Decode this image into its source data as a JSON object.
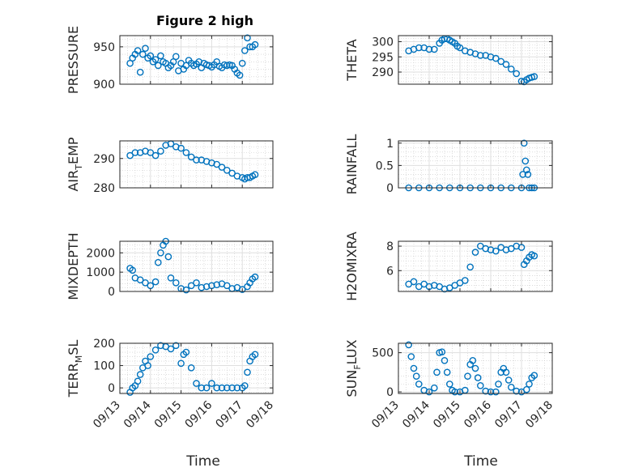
{
  "figure_title": "Figure 2 high",
  "xlabel": "Time",
  "xticks": [
    "09/13",
    "09/14",
    "09/15",
    "09/16",
    "09/17",
    "09/18"
  ],
  "colors": {
    "marker": "#0072BD",
    "axis": "#262626",
    "grid": "#DFDFDF",
    "minor_grid": "#C8C8C8"
  },
  "chart_data": [
    {
      "type": "scatter",
      "ylabel": {
        "text": "PRESSURE"
      },
      "xlim": [
        "09/13",
        "09/18"
      ],
      "ylim": [
        900,
        965
      ],
      "yticks": [
        900,
        950
      ],
      "x": [
        "09/13 08:00",
        "09/13 10:00",
        "09/13 12:00",
        "09/13 14:00",
        "09/13 16:00",
        "09/13 18:00",
        "09/13 20:00",
        "09/13 22:00",
        "09/14 00:00",
        "09/14 02:00",
        "09/14 04:00",
        "09/14 06:00",
        "09/14 08:00",
        "09/14 10:00",
        "09/14 12:00",
        "09/14 14:00",
        "09/14 16:00",
        "09/14 18:00",
        "09/14 20:00",
        "09/14 22:00",
        "09/15 00:00",
        "09/15 02:00",
        "09/15 04:00",
        "09/15 06:00",
        "09/15 08:00",
        "09/15 10:00",
        "09/15 12:00",
        "09/15 14:00",
        "09/15 16:00",
        "09/15 18:00",
        "09/15 20:00",
        "09/15 22:00",
        "09/16 00:00",
        "09/16 02:00",
        "09/16 04:00",
        "09/16 06:00",
        "09/16 08:00",
        "09/16 10:00",
        "09/16 12:00",
        "09/16 14:00",
        "09/16 16:00",
        "09/16 18:00",
        "09/16 20:00",
        "09/16 22:00",
        "09/17 00:00",
        "09/17 02:00",
        "09/17 04:00",
        "09/17 06:00",
        "09/17 08:00",
        "09/17 10:00"
      ],
      "y": [
        928,
        935,
        940,
        945,
        916,
        940,
        948,
        935,
        938,
        930,
        933,
        925,
        938,
        930,
        928,
        922,
        925,
        930,
        937,
        918,
        928,
        920,
        925,
        932,
        928,
        925,
        927,
        930,
        922,
        928,
        926,
        925,
        923,
        926,
        930,
        924,
        922,
        926,
        925,
        926,
        925,
        920,
        915,
        912,
        928,
        945,
        962,
        950,
        950,
        953
      ]
    },
    {
      "type": "scatter",
      "ylabel": {
        "text": "THETA"
      },
      "xlim": [
        "09/13",
        "09/18"
      ],
      "ylim": [
        286,
        302
      ],
      "yticks": [
        290,
        295,
        300
      ],
      "x": [
        "09/13 08:00",
        "09/13 12:00",
        "09/13 16:00",
        "09/13 20:00",
        "09/14 00:00",
        "09/14 04:00",
        "09/14 08:00",
        "09/14 10:00",
        "09/14 12:00",
        "09/14 14:00",
        "09/14 16:00",
        "09/14 18:00",
        "09/14 20:00",
        "09/14 22:00",
        "09/15 00:00",
        "09/15 04:00",
        "09/15 08:00",
        "09/15 12:00",
        "09/15 16:00",
        "09/15 20:00",
        "09/16 00:00",
        "09/16 04:00",
        "09/16 08:00",
        "09/16 12:00",
        "09/16 16:00",
        "09/16 20:00",
        "09/17 00:00",
        "09/17 02:00",
        "09/17 04:00",
        "09/17 06:00",
        "09/17 08:00",
        "09/17 10:00"
      ],
      "y": [
        297,
        297.5,
        298,
        298,
        297.5,
        297.5,
        299.5,
        300.5,
        301,
        301,
        300.5,
        300,
        299.5,
        298.5,
        298,
        297,
        296.5,
        296,
        295.5,
        295.5,
        295,
        294.5,
        293.5,
        292.5,
        291,
        289.5,
        287,
        286.8,
        287.5,
        288,
        288.3,
        288.5
      ]
    },
    {
      "type": "scatter",
      "ylabel": {
        "text": "AIR_TEMP",
        "main": "AIR",
        "sub": "T",
        "rest": "EMP"
      },
      "xlim": [
        "09/13",
        "09/18"
      ],
      "ylim": [
        280,
        296
      ],
      "yticks": [
        280,
        290
      ],
      "x": [
        "09/13 08:00",
        "09/13 12:00",
        "09/13 16:00",
        "09/13 20:00",
        "09/14 00:00",
        "09/14 04:00",
        "09/14 08:00",
        "09/14 12:00",
        "09/14 16:00",
        "09/14 20:00",
        "09/15 00:00",
        "09/15 04:00",
        "09/15 08:00",
        "09/15 12:00",
        "09/15 16:00",
        "09/15 20:00",
        "09/16 00:00",
        "09/16 04:00",
        "09/16 08:00",
        "09/16 12:00",
        "09/16 16:00",
        "09/16 20:00",
        "09/17 00:00",
        "09/17 02:00",
        "09/17 04:00",
        "09/17 06:00",
        "09/17 08:00",
        "09/17 10:00"
      ],
      "y": [
        291,
        292,
        292,
        292.5,
        292,
        291,
        292.5,
        294.5,
        295,
        294,
        293.5,
        292,
        290.5,
        289.5,
        289.5,
        289,
        288.5,
        288,
        287,
        286,
        285,
        284,
        283.5,
        283,
        283.5,
        283.5,
        284,
        284.5
      ]
    },
    {
      "type": "scatter",
      "ylabel": {
        "text": "RAINFALL"
      },
      "xlim": [
        "09/13",
        "09/18"
      ],
      "ylim": [
        0,
        1.05
      ],
      "yticks": [
        0,
        0.5,
        1
      ],
      "x": [
        "09/13 08:00",
        "09/13 16:00",
        "09/14 00:00",
        "09/14 08:00",
        "09/14 16:00",
        "09/15 00:00",
        "09/15 08:00",
        "09/15 16:00",
        "09/16 00:00",
        "09/16 08:00",
        "09/16 16:00",
        "09/17 00:00",
        "09/17 01:00",
        "09/17 02:00",
        "09/17 03:00",
        "09/17 04:00",
        "09/17 05:00",
        "09/17 06:00",
        "09/17 08:00",
        "09/17 10:00"
      ],
      "y": [
        0,
        0,
        0,
        0,
        0,
        0,
        0,
        0,
        0,
        0,
        0,
        0,
        0.3,
        1.0,
        0.6,
        0.4,
        0.3,
        0,
        0,
        0
      ]
    },
    {
      "type": "scatter",
      "ylabel": {
        "text": "MIXDEPTH"
      },
      "xlim": [
        "09/13",
        "09/18"
      ],
      "ylim": [
        0,
        2600
      ],
      "yticks": [
        0,
        1000,
        2000
      ],
      "x": [
        "09/13 08:00",
        "09/13 10:00",
        "09/13 12:00",
        "09/13 16:00",
        "09/13 20:00",
        "09/14 00:00",
        "09/14 04:00",
        "09/14 06:00",
        "09/14 08:00",
        "09/14 10:00",
        "09/14 12:00",
        "09/14 14:00",
        "09/14 16:00",
        "09/14 20:00",
        "09/15 00:00",
        "09/15 04:00",
        "09/15 08:00",
        "09/15 12:00",
        "09/15 16:00",
        "09/15 20:00",
        "09/16 00:00",
        "09/16 04:00",
        "09/16 08:00",
        "09/16 12:00",
        "09/16 16:00",
        "09/16 20:00",
        "09/17 00:00",
        "09/17 04:00",
        "09/17 06:00",
        "09/17 08:00",
        "09/17 10:00"
      ],
      "y": [
        1200,
        1100,
        700,
        600,
        450,
        300,
        500,
        1500,
        2000,
        2400,
        2600,
        1800,
        700,
        450,
        150,
        80,
        300,
        450,
        200,
        250,
        300,
        350,
        400,
        300,
        150,
        200,
        100,
        250,
        450,
        650,
        750
      ]
    },
    {
      "type": "scatter",
      "ylabel": {
        "text": "H2OMIXRA"
      },
      "xlim": [
        "09/13",
        "09/18"
      ],
      "ylim": [
        4.3,
        8.4
      ],
      "yticks": [
        6,
        8
      ],
      "x": [
        "09/13 08:00",
        "09/13 12:00",
        "09/13 16:00",
        "09/13 20:00",
        "09/14 00:00",
        "09/14 04:00",
        "09/14 08:00",
        "09/14 12:00",
        "09/14 16:00",
        "09/14 20:00",
        "09/15 00:00",
        "09/15 04:00",
        "09/15 08:00",
        "09/15 12:00",
        "09/15 16:00",
        "09/15 20:00",
        "09/16 00:00",
        "09/16 04:00",
        "09/16 08:00",
        "09/16 12:00",
        "09/16 16:00",
        "09/16 20:00",
        "09/17 00:00",
        "09/17 02:00",
        "09/17 04:00",
        "09/17 06:00",
        "09/17 08:00",
        "09/17 10:00"
      ],
      "y": [
        4.9,
        5.1,
        4.7,
        4.9,
        4.7,
        4.8,
        4.7,
        4.5,
        4.6,
        4.8,
        5.0,
        5.2,
        6.3,
        7.5,
        8.0,
        7.8,
        7.7,
        7.6,
        7.9,
        7.7,
        7.8,
        8.0,
        7.9,
        6.5,
        6.8,
        7.1,
        7.3,
        7.2
      ]
    },
    {
      "type": "scatter",
      "ylabel": {
        "text": "TERR_MSL",
        "main": "TERR",
        "sub": "M",
        "rest": "SL"
      },
      "xlim": [
        "09/13",
        "09/18"
      ],
      "ylim": [
        -25,
        200
      ],
      "yticks": [
        0,
        100,
        200
      ],
      "x": [
        "09/13 08:00",
        "09/13 10:00",
        "09/13 12:00",
        "09/13 14:00",
        "09/13 16:00",
        "09/13 18:00",
        "09/13 20:00",
        "09/13 22:00",
        "09/14 00:00",
        "09/14 04:00",
        "09/14 08:00",
        "09/14 12:00",
        "09/14 16:00",
        "09/14 20:00",
        "09/15 00:00",
        "09/15 02:00",
        "09/15 04:00",
        "09/15 08:00",
        "09/15 12:00",
        "09/15 16:00",
        "09/15 20:00",
        "09/16 00:00",
        "09/16 04:00",
        "09/16 08:00",
        "09/16 12:00",
        "09/16 16:00",
        "09/16 20:00",
        "09/17 00:00",
        "09/17 02:00",
        "09/17 04:00",
        "09/17 06:00",
        "09/17 08:00",
        "09/17 10:00"
      ],
      "y": [
        -20,
        0,
        10,
        30,
        60,
        90,
        120,
        100,
        140,
        170,
        190,
        185,
        175,
        190,
        110,
        150,
        160,
        90,
        20,
        0,
        0,
        20,
        0,
        0,
        0,
        0,
        0,
        0,
        10,
        70,
        120,
        140,
        150
      ]
    },
    {
      "type": "scatter",
      "ylabel": {
        "text": "SUN_FLUX",
        "main": "SUN",
        "sub": "F",
        "rest": "LUX"
      },
      "xlim": [
        "09/13",
        "09/18"
      ],
      "ylim": [
        -20,
        620
      ],
      "yticks": [
        0,
        500
      ],
      "x": [
        "09/13 08:00",
        "09/13 10:00",
        "09/13 12:00",
        "09/13 14:00",
        "09/13 16:00",
        "09/13 20:00",
        "09/14 00:00",
        "09/14 04:00",
        "09/14 06:00",
        "09/14 08:00",
        "09/14 10:00",
        "09/14 12:00",
        "09/14 14:00",
        "09/14 16:00",
        "09/14 18:00",
        "09/14 20:00",
        "09/15 00:00",
        "09/15 04:00",
        "09/15 06:00",
        "09/15 08:00",
        "09/15 10:00",
        "09/15 12:00",
        "09/15 14:00",
        "09/15 16:00",
        "09/15 20:00",
        "09/16 00:00",
        "09/16 04:00",
        "09/16 06:00",
        "09/16 08:00",
        "09/16 10:00",
        "09/16 12:00",
        "09/16 14:00",
        "09/16 16:00",
        "09/16 20:00",
        "09/17 00:00",
        "09/17 04:00",
        "09/17 06:00",
        "09/17 08:00",
        "09/17 10:00"
      ],
      "y": [
        600,
        450,
        300,
        200,
        100,
        20,
        0,
        50,
        250,
        500,
        510,
        400,
        250,
        100,
        20,
        0,
        0,
        20,
        200,
        350,
        400,
        300,
        180,
        80,
        10,
        0,
        0,
        100,
        250,
        300,
        250,
        150,
        60,
        10,
        0,
        30,
        100,
        180,
        210
      ]
    }
  ]
}
